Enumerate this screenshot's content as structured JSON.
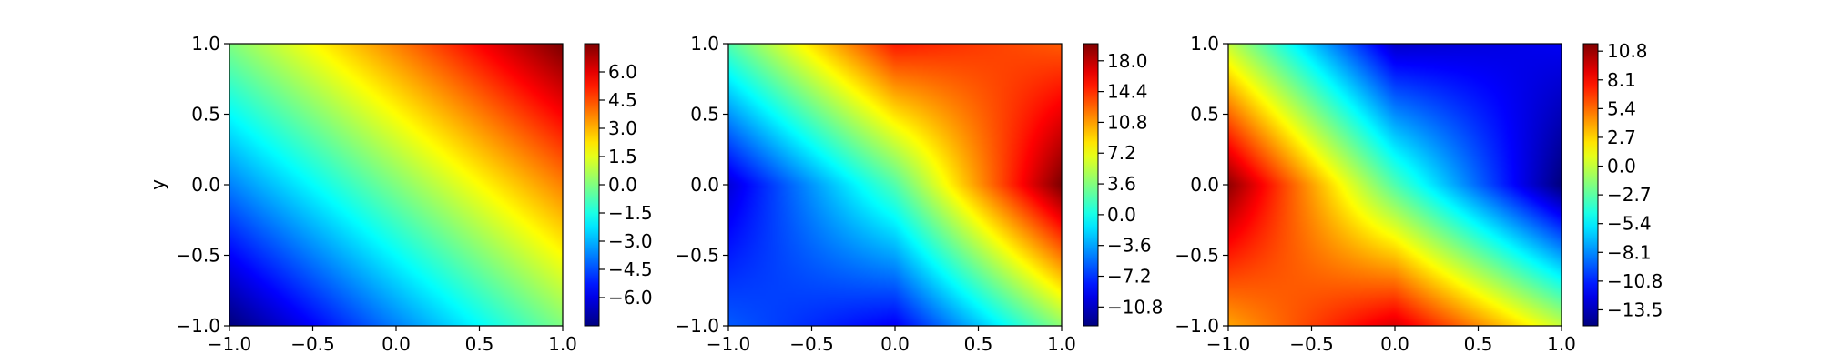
{
  "chart_data": [
    {
      "type": "heatmap",
      "title": "",
      "xlabel": "",
      "ylabel": "y",
      "xlim": [
        -1.0,
        1.0
      ],
      "ylim": [
        -1.0,
        1.0
      ],
      "x_ticks": [
        "−1.0",
        "−0.5",
        "0.0",
        "0.5",
        "1.0"
      ],
      "y_ticks": [
        "−1.0",
        "−0.5",
        "0.0",
        "0.5",
        "1.0"
      ],
      "colormap": "jet",
      "colorbar_range": [
        -7.5,
        7.5
      ],
      "colorbar_ticks": [
        {
          "value": 6.0,
          "label": "6.0"
        },
        {
          "value": 4.5,
          "label": "4.5"
        },
        {
          "value": 3.0,
          "label": "3.0"
        },
        {
          "value": 1.5,
          "label": "1.5"
        },
        {
          "value": 0.0,
          "label": "0.0"
        },
        {
          "value": -1.5,
          "label": "−1.5"
        },
        {
          "value": -3.0,
          "label": "−3.0"
        },
        {
          "value": -4.5,
          "label": "−4.5"
        },
        {
          "value": -6.0,
          "label": "−6.0"
        }
      ],
      "field": {
        "x": [
          -1.0,
          0.0,
          1.0
        ],
        "y": [
          1.0,
          0.0,
          -1.0
        ],
        "z": [
          [
            0.0,
            3.7,
            7.5
          ],
          [
            -3.7,
            0.0,
            3.7
          ],
          [
            -7.5,
            -3.7,
            0.0
          ]
        ]
      }
    },
    {
      "type": "heatmap",
      "title": "",
      "xlabel": "",
      "ylabel": "",
      "xlim": [
        -1.0,
        1.0
      ],
      "ylim": [
        -1.0,
        1.0
      ],
      "x_ticks": [
        "−1.0",
        "−0.5",
        "0.0",
        "0.5",
        "1.0"
      ],
      "y_ticks": [
        "−1.0",
        "−0.5",
        "0.0",
        "0.5",
        "1.0"
      ],
      "colormap": "jet",
      "colorbar_range": [
        -13.0,
        20.0
      ],
      "colorbar_ticks": [
        {
          "value": 18.0,
          "label": "18.0"
        },
        {
          "value": 14.4,
          "label": "14.4"
        },
        {
          "value": 10.8,
          "label": "10.8"
        },
        {
          "value": 7.2,
          "label": "7.2"
        },
        {
          "value": 3.6,
          "label": "3.6"
        },
        {
          "value": 0.0,
          "label": "0.0"
        },
        {
          "value": -3.6,
          "label": "−3.6"
        },
        {
          "value": -7.2,
          "label": "−7.2"
        },
        {
          "value": -10.8,
          "label": "−10.8"
        }
      ],
      "field": {
        "x": [
          -1.0,
          0.0,
          1.0
        ],
        "y": [
          1.0,
          0.0,
          -1.0
        ],
        "z": [
          [
            2.0,
            15.0,
            13.0
          ],
          [
            -10.0,
            2.0,
            20.0
          ],
          [
            -6.0,
            -9.0,
            4.0
          ]
        ]
      }
    },
    {
      "type": "heatmap",
      "title": "",
      "xlabel": "",
      "ylabel": "",
      "xlim": [
        -1.0,
        1.0
      ],
      "ylim": [
        -1.0,
        1.0
      ],
      "x_ticks": [
        "−1.0",
        "−0.5",
        "0.0",
        "0.5",
        "1.0"
      ],
      "y_ticks": [
        "−1.0",
        "−0.5",
        "0.0",
        "0.5",
        "1.0"
      ],
      "colormap": "jet",
      "colorbar_range": [
        -15.0,
        11.5
      ],
      "colorbar_ticks": [
        {
          "value": 10.8,
          "label": "10.8"
        },
        {
          "value": 8.1,
          "label": "8.1"
        },
        {
          "value": 5.4,
          "label": "5.4"
        },
        {
          "value": 2.7,
          "label": "2.7"
        },
        {
          "value": 0.0,
          "label": "0.0"
        },
        {
          "value": -2.7,
          "label": "−2.7"
        },
        {
          "value": -5.4,
          "label": "−5.4"
        },
        {
          "value": -8.1,
          "label": "−8.1"
        },
        {
          "value": -10.8,
          "label": "−10.8"
        },
        {
          "value": -13.5,
          "label": "−13.5"
        }
      ],
      "field": {
        "x": [
          -1.0,
          0.0,
          1.0
        ],
        "y": [
          1.0,
          0.0,
          -1.0
        ],
        "z": [
          [
            0.0,
            -13.0,
            -12.0
          ],
          [
            11.0,
            -3.0,
            -15.0
          ],
          [
            4.0,
            9.0,
            0.0
          ]
        ]
      }
    }
  ]
}
